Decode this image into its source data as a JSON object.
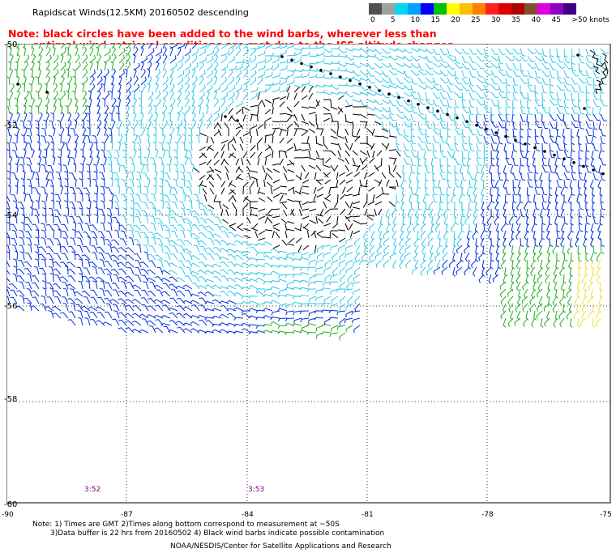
{
  "header": {
    "title": "Rapidscat Winds(12.5KM) 20160502 descending",
    "note_line1": "Note: black circles have been added to the wind barbs, wherever less than",
    "note_line2": "optimal wind retrieval conditions are met due to the ISS altitude changes."
  },
  "legend": {
    "labels": [
      "0",
      "5",
      "10",
      "15",
      "20",
      "25",
      "30",
      "35",
      "40",
      "45",
      ">50 knots"
    ],
    "colors": [
      "#505050",
      "#a0a0a0",
      "#00d8f0",
      "#00a0ff",
      "#0000ff",
      "#00c000",
      "#ffff00",
      "#ffc000",
      "#ff8000",
      "#ff2020",
      "#e00000",
      "#b00000",
      "#805030",
      "#e000e0",
      "#9000c0",
      "#400080"
    ]
  },
  "map": {
    "y_labels": [
      "-52",
      "-54",
      "-56",
      "-58",
      "-60"
    ],
    "top_label": "-50",
    "x_labels": [
      "-90",
      "-87",
      "-84",
      "-81",
      "-78",
      "-75"
    ],
    "time_labels": [
      "3:52",
      "3:53"
    ],
    "barb_colors": {
      "calm": "#000000",
      "light": "#30c8e8",
      "moderate": "#0030e0",
      "fresh": "#20b020",
      "strong": "#f0e040"
    }
  },
  "footer": {
    "line1": "Note: 1) Times are GMT 2)Times along bottom correspond to measurement at ~50S",
    "line2": "3)Data buffer is 22 hrs from 20160502 4) Black wind barbs indicate possible contamination",
    "line3": "NOAA/NESDIS/Center for Satellite Applications and Research"
  }
}
